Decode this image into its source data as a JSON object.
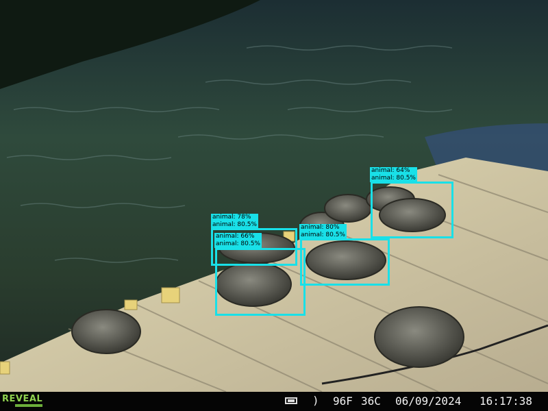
{
  "camera": {
    "brand": "REVEAL",
    "temp_f": "96F",
    "temp_c": "36C",
    "date": "06/09/2024",
    "time": "16:17:38",
    "battery_icon": "battery-icon",
    "moon_icon": "moon-phase-icon",
    "moon_glyph": ")"
  },
  "detections": [
    {
      "id": "det1",
      "line1": "animal: 64%",
      "line2": "animal: 80.5%"
    },
    {
      "id": "det2",
      "line1": "animal: 78%",
      "line2": "animal: 80.5%"
    },
    {
      "id": "det3",
      "line1": "animal: 66%",
      "line2": "animal: 80.5%"
    },
    {
      "id": "det4",
      "line1": "animal: 80%",
      "line2": "animal: 80.5%"
    }
  ],
  "colors": {
    "box": "#19e0e8",
    "water": "#2d3a2a",
    "dock": "#cfc8a6"
  }
}
